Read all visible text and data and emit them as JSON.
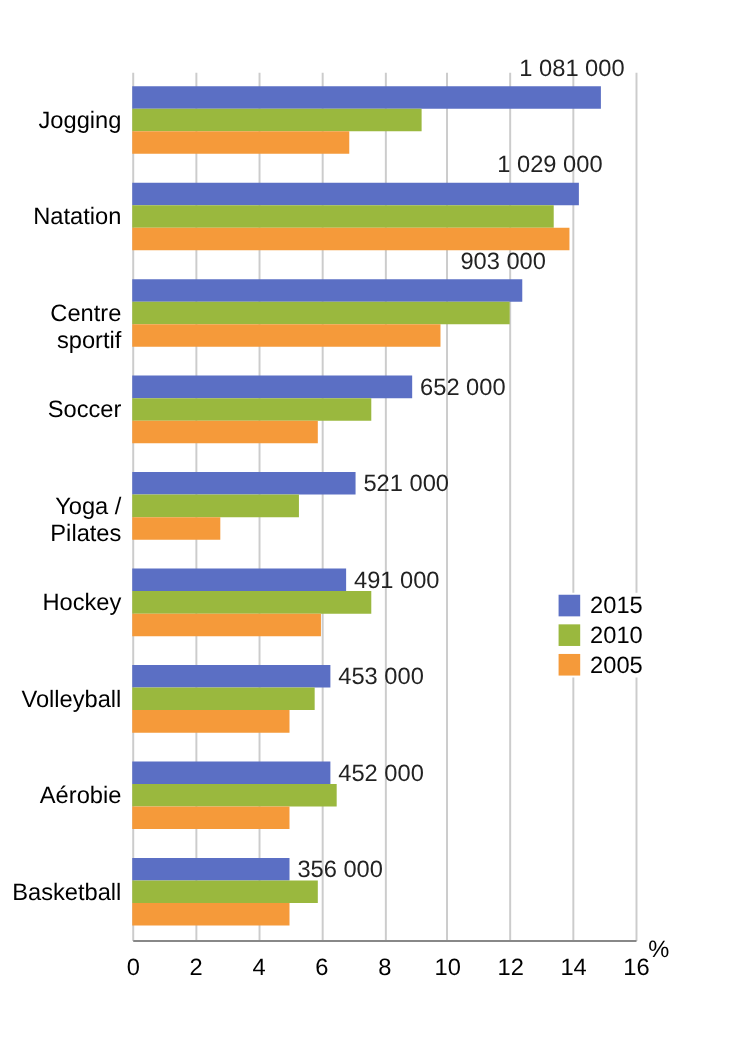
{
  "chart_data": {
    "type": "bar",
    "orientation": "horizontal",
    "categories": [
      "Jogging",
      "Natation",
      "Centre\nsportif",
      "Soccer",
      "Yoga /\nPilates",
      "Hockey",
      "Volleyball",
      "Aérobie",
      "Basketball"
    ],
    "series": [
      {
        "name": "2015",
        "color": "#5b6fc4",
        "values": [
          14.9,
          14.2,
          12.4,
          8.9,
          7.1,
          6.8,
          6.3,
          6.3,
          5.0
        ]
      },
      {
        "name": "2010",
        "color": "#9ab83e",
        "values": [
          9.2,
          13.4,
          12.0,
          7.6,
          5.3,
          7.6,
          5.8,
          6.5,
          5.9
        ]
      },
      {
        "name": "2005",
        "color": "#f59a3a",
        "values": [
          6.9,
          13.9,
          9.8,
          5.9,
          2.8,
          6.0,
          5.0,
          5.0,
          5.0
        ]
      }
    ],
    "xlabel": "%",
    "xlim": [
      0,
      16
    ],
    "xticks": [
      0,
      2,
      4,
      6,
      8,
      10,
      12,
      14,
      16
    ],
    "grid": "x",
    "legend": "right",
    "annotations": [
      "1 081 000",
      "1 029 000",
      "903 000",
      "652 000",
      "521 000",
      "491 000",
      "453 000",
      "452 000",
      "356 000"
    ]
  }
}
